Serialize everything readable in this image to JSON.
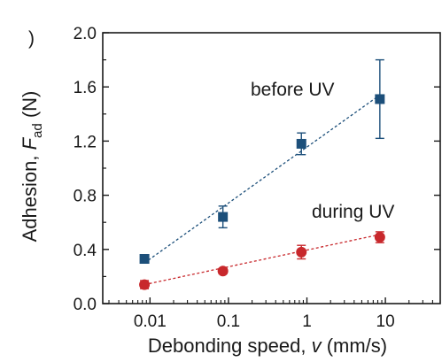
{
  "chart_data": {
    "type": "scatter",
    "panel_label": ")",
    "xlabel": "Debonding speed, ",
    "xlabel_var": "v",
    "xlabel_unit": " (mm/s)",
    "ylabel": "Adhesion, ",
    "ylabel_var": "F",
    "ylabel_sub": "ad",
    "ylabel_unit": " (N)",
    "xscale": "log",
    "xlim": [
      0.0025,
      50
    ],
    "ylim": [
      0.0,
      2.0
    ],
    "xticks": [
      0.01,
      0.1,
      1,
      10
    ],
    "xtick_labels": [
      "0.01",
      "0.1",
      "1",
      "10"
    ],
    "yticks": [
      0.0,
      0.4,
      0.8,
      1.2,
      1.6,
      2.0
    ],
    "ytick_labels": [
      "0.0",
      "0.4",
      "0.8",
      "1.2",
      "1.6",
      "2.0"
    ],
    "grid": false,
    "series": [
      {
        "name": "before UV",
        "color": "#1c4f7a",
        "marker": "square",
        "x": [
          0.0085,
          0.085,
          0.85,
          8.5
        ],
        "y": [
          0.33,
          0.64,
          1.18,
          1.51
        ],
        "yerr": [
          0.02,
          0.08,
          0.08,
          0.29
        ],
        "fit": [
          [
            0.0085,
            0.3
          ],
          [
            8.5,
            1.54
          ]
        ]
      },
      {
        "name": "during UV",
        "color": "#c8282c",
        "marker": "circle",
        "x": [
          0.0085,
          0.085,
          0.85,
          8.5
        ],
        "y": [
          0.14,
          0.24,
          0.38,
          0.49
        ],
        "yerr": [
          0.03,
          0.02,
          0.05,
          0.04
        ],
        "fit": [
          [
            0.0085,
            0.14
          ],
          [
            8.5,
            0.51
          ]
        ]
      }
    ]
  }
}
